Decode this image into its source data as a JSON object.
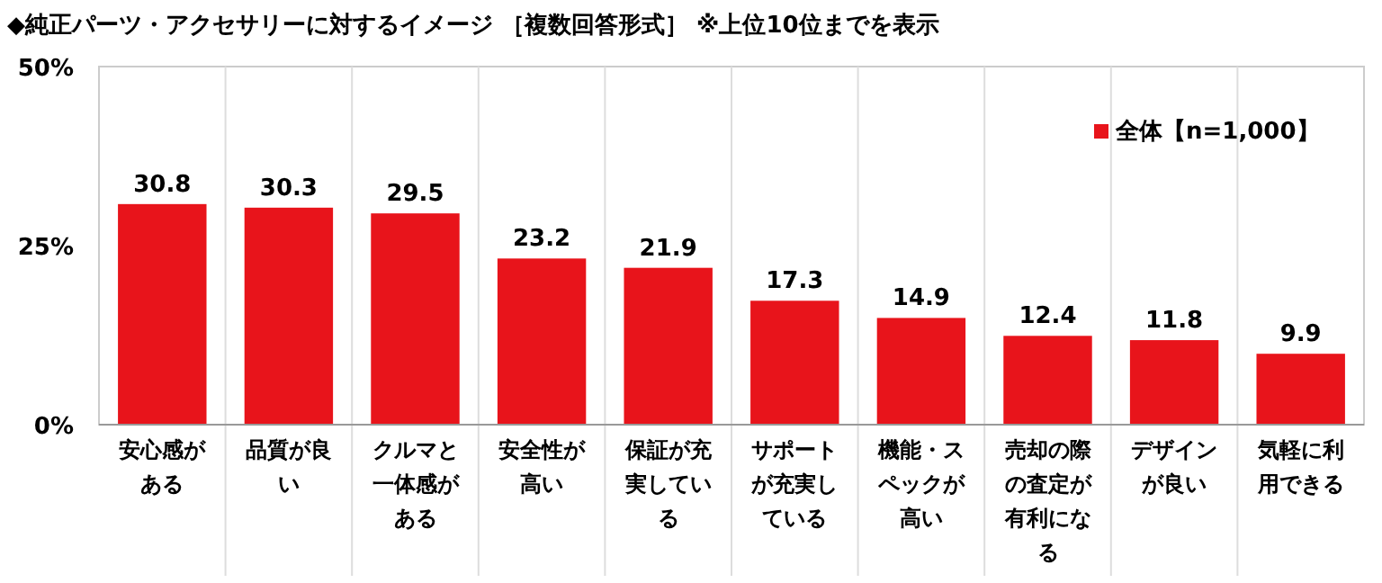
{
  "chart_data": {
    "type": "bar",
    "title": "◆純正パーツ・アクセサリーに対するイメージ ［複数回答形式］ ※上位10位までを表示",
    "categories": [
      "安心感がある",
      "品質が良い",
      "クルマと一体感がある",
      "安全性が高い",
      "保証が充実している",
      "サポートが充実している",
      "機能・スペックが高い",
      "売却の際の査定が有利になる",
      "デザインが良い",
      "気軽に利用できる"
    ],
    "series": [
      {
        "name": "全体【n=1,000】",
        "color": "#e8141b",
        "values": [
          30.8,
          30.3,
          29.5,
          23.2,
          21.9,
          17.3,
          14.9,
          12.4,
          11.8,
          9.9
        ]
      }
    ],
    "ylim": [
      0,
      50
    ],
    "yticks": [
      {
        "value": 0,
        "label": "0%"
      },
      {
        "value": 25,
        "label": "25%"
      },
      {
        "value": 50,
        "label": "50%"
      }
    ],
    "data_labels": true,
    "legend": "top right"
  }
}
